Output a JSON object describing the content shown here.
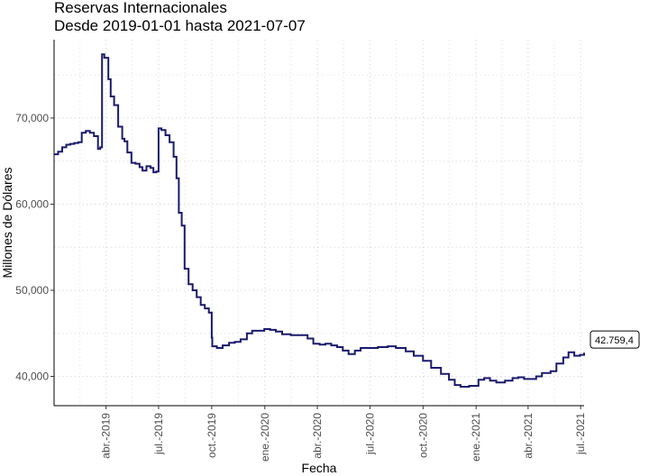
{
  "chart_data": {
    "type": "line",
    "title": "Reservas Internacionales",
    "subtitle": "Desde 2019-01-01 hasta 2021-07-07",
    "xlabel": "Fecha",
    "ylabel": "Millones de Dólares",
    "x_range": [
      "2019-01-01",
      "2021-07-07"
    ],
    "ylim": [
      36600,
      79100
    ],
    "yticks": [
      40000,
      50000,
      60000,
      70000
    ],
    "ytick_labels": [
      "40,000",
      "50,000",
      "60,000",
      "70,000"
    ],
    "xticks": [
      "2019-04-01",
      "2019-07-01",
      "2019-10-01",
      "2020-01-01",
      "2020-04-01",
      "2020-07-01",
      "2020-10-01",
      "2021-01-01",
      "2021-04-01",
      "2021-07-01"
    ],
    "xtick_labels": [
      "abr.-2019",
      "jul.-2019",
      "oct.-2019",
      "ene.-2020",
      "abr.-2020",
      "jul.-2020",
      "oct.-2020",
      "ene.-2021",
      "abr.-2021",
      "jul.-2021"
    ],
    "grid": "dotted",
    "line_color": "#1a1a6e",
    "last_label": "42.759,4",
    "series": [
      {
        "points": [
          [
            "2019-01-01",
            65800
          ],
          [
            "2019-01-08",
            66100
          ],
          [
            "2019-01-15",
            66600
          ],
          [
            "2019-01-22",
            66900
          ],
          [
            "2019-01-29",
            67000
          ],
          [
            "2019-02-05",
            67100
          ],
          [
            "2019-02-12",
            67200
          ],
          [
            "2019-02-18",
            68300
          ],
          [
            "2019-02-25",
            68500
          ],
          [
            "2019-03-04",
            68300
          ],
          [
            "2019-03-11",
            67900
          ],
          [
            "2019-03-18",
            66400
          ],
          [
            "2019-03-22",
            66600
          ],
          [
            "2019-03-25",
            77400
          ],
          [
            "2019-03-29",
            77000
          ],
          [
            "2019-04-05",
            74500
          ],
          [
            "2019-04-09",
            72500
          ],
          [
            "2019-04-15",
            71500
          ],
          [
            "2019-04-22",
            69000
          ],
          [
            "2019-04-29",
            67600
          ],
          [
            "2019-05-03",
            67300
          ],
          [
            "2019-05-08",
            66000
          ],
          [
            "2019-05-15",
            64800
          ],
          [
            "2019-05-22",
            64700
          ],
          [
            "2019-05-29",
            64300
          ],
          [
            "2019-06-03",
            63900
          ],
          [
            "2019-06-10",
            64400
          ],
          [
            "2019-06-17",
            64200
          ],
          [
            "2019-06-22",
            63700
          ],
          [
            "2019-06-27",
            63800
          ],
          [
            "2019-07-01",
            68800
          ],
          [
            "2019-07-06",
            68600
          ],
          [
            "2019-07-13",
            68000
          ],
          [
            "2019-07-20",
            67200
          ],
          [
            "2019-07-27",
            65500
          ],
          [
            "2019-08-01",
            63000
          ],
          [
            "2019-08-05",
            59000
          ],
          [
            "2019-08-10",
            57500
          ],
          [
            "2019-08-15",
            52500
          ],
          [
            "2019-08-22",
            50700
          ],
          [
            "2019-08-29",
            50000
          ],
          [
            "2019-09-05",
            49200
          ],
          [
            "2019-09-12",
            48300
          ],
          [
            "2019-09-19",
            47900
          ],
          [
            "2019-09-26",
            47400
          ],
          [
            "2019-10-01",
            44500
          ],
          [
            "2019-10-02",
            43500
          ],
          [
            "2019-10-10",
            43300
          ],
          [
            "2019-10-20",
            43600
          ],
          [
            "2019-10-31",
            43900
          ],
          [
            "2019-11-10",
            44000
          ],
          [
            "2019-11-20",
            44300
          ],
          [
            "2019-12-01",
            45000
          ],
          [
            "2019-12-10",
            45300
          ],
          [
            "2019-12-20",
            45300
          ],
          [
            "2019-12-31",
            45500
          ],
          [
            "2020-01-10",
            45400
          ],
          [
            "2020-01-20",
            45200
          ],
          [
            "2020-01-31",
            44900
          ],
          [
            "2020-02-15",
            44800
          ],
          [
            "2020-03-01",
            44800
          ],
          [
            "2020-03-15",
            44400
          ],
          [
            "2020-03-25",
            43800
          ],
          [
            "2020-04-05",
            43700
          ],
          [
            "2020-04-15",
            43800
          ],
          [
            "2020-04-25",
            43600
          ],
          [
            "2020-05-05",
            43400
          ],
          [
            "2020-05-15",
            43000
          ],
          [
            "2020-05-25",
            42600
          ],
          [
            "2020-06-05",
            43000
          ],
          [
            "2020-06-15",
            43300
          ],
          [
            "2020-07-01",
            43300
          ],
          [
            "2020-07-15",
            43400
          ],
          [
            "2020-08-01",
            43500
          ],
          [
            "2020-08-15",
            43300
          ],
          [
            "2020-09-01",
            42900
          ],
          [
            "2020-09-15",
            42400
          ],
          [
            "2020-10-01",
            41800
          ],
          [
            "2020-10-15",
            41000
          ],
          [
            "2020-11-01",
            40300
          ],
          [
            "2020-11-15",
            39600
          ],
          [
            "2020-11-25",
            39000
          ],
          [
            "2020-12-05",
            38800
          ],
          [
            "2020-12-20",
            38900
          ],
          [
            "2021-01-05",
            39600
          ],
          [
            "2021-01-15",
            39800
          ],
          [
            "2021-01-25",
            39500
          ],
          [
            "2021-02-05",
            39300
          ],
          [
            "2021-02-20",
            39500
          ],
          [
            "2021-03-05",
            39800
          ],
          [
            "2021-03-15",
            39900
          ],
          [
            "2021-03-25",
            39700
          ],
          [
            "2021-04-05",
            39700
          ],
          [
            "2021-04-15",
            40000
          ],
          [
            "2021-04-25",
            40400
          ],
          [
            "2021-05-10",
            40600
          ],
          [
            "2021-05-20",
            41500
          ],
          [
            "2021-06-01",
            42200
          ],
          [
            "2021-06-10",
            42800
          ],
          [
            "2021-06-20",
            42400
          ],
          [
            "2021-06-30",
            42500
          ],
          [
            "2021-07-07",
            42759.4
          ]
        ]
      }
    ]
  }
}
